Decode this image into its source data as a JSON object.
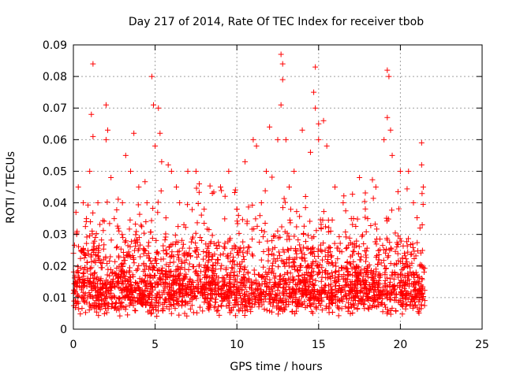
{
  "chart_data": {
    "type": "scatter",
    "title": "Day 217 of 2014, Rate Of TEC Index for receiver tbob",
    "xlabel": "GPS time / hours",
    "ylabel": "ROTI / TECUs",
    "xlim": [
      0,
      25
    ],
    "ylim": [
      0,
      0.09
    ],
    "x_ticks": [
      "0",
      "5",
      "10",
      "15",
      "20",
      "25"
    ],
    "y_ticks": [
      "0",
      "0.01",
      "0.02",
      "0.03",
      "0.04",
      "0.05",
      "0.06",
      "0.07",
      "0.08",
      "0.09"
    ],
    "x_tick_values": [
      0,
      5,
      10,
      15,
      20,
      25
    ],
    "y_tick_values": [
      0,
      0.01,
      0.02,
      0.03,
      0.04,
      0.05,
      0.06,
      0.07,
      0.08,
      0.09
    ],
    "grid": true,
    "marker": "+",
    "color": "#ff0000",
    "x_data_range": [
      0,
      21.5
    ],
    "series": [
      {
        "name": "",
        "points": [
          [
            1.2,
            0.084
          ],
          [
            1.1,
            0.068
          ],
          [
            1.2,
            0.061
          ],
          [
            1.0,
            0.05
          ],
          [
            2.0,
            0.071
          ],
          [
            2.1,
            0.063
          ],
          [
            2.0,
            0.06
          ],
          [
            2.3,
            0.048
          ],
          [
            3.2,
            0.055
          ],
          [
            3.7,
            0.062
          ],
          [
            3.5,
            0.05
          ],
          [
            4.8,
            0.08
          ],
          [
            4.9,
            0.071
          ],
          [
            5.2,
            0.07
          ],
          [
            5.3,
            0.062
          ],
          [
            5.4,
            0.053
          ],
          [
            5.0,
            0.058
          ],
          [
            5.8,
            0.052
          ],
          [
            6.0,
            0.05
          ],
          [
            6.3,
            0.045
          ],
          [
            7.0,
            0.05
          ],
          [
            7.5,
            0.05
          ],
          [
            7.7,
            0.046
          ],
          [
            8.5,
            0.043
          ],
          [
            9.0,
            0.045
          ],
          [
            9.5,
            0.05
          ],
          [
            10.5,
            0.053
          ],
          [
            11.0,
            0.06
          ],
          [
            11.2,
            0.058
          ],
          [
            11.8,
            0.05
          ],
          [
            12.0,
            0.064
          ],
          [
            12.5,
            0.06
          ],
          [
            12.7,
            0.087
          ],
          [
            12.8,
            0.084
          ],
          [
            12.8,
            0.079
          ],
          [
            12.7,
            0.071
          ],
          [
            13.0,
            0.06
          ],
          [
            13.5,
            0.05
          ],
          [
            14.0,
            0.063
          ],
          [
            14.5,
            0.056
          ],
          [
            14.8,
            0.083
          ],
          [
            14.7,
            0.075
          ],
          [
            14.8,
            0.07
          ],
          [
            15.0,
            0.065
          ],
          [
            15.3,
            0.066
          ],
          [
            15.5,
            0.058
          ],
          [
            15.0,
            0.06
          ],
          [
            16.0,
            0.045
          ],
          [
            17.5,
            0.048
          ],
          [
            18.5,
            0.045
          ],
          [
            19.0,
            0.06
          ],
          [
            19.2,
            0.082
          ],
          [
            19.3,
            0.08
          ],
          [
            19.2,
            0.067
          ],
          [
            19.4,
            0.063
          ],
          [
            19.5,
            0.055
          ],
          [
            20.0,
            0.05
          ],
          [
            20.5,
            0.05
          ],
          [
            21.3,
            0.059
          ],
          [
            21.3,
            0.052
          ],
          [
            21.4,
            0.045
          ],
          [
            21.2,
            0.032
          ],
          [
            0.3,
            0.045
          ],
          [
            0.6,
            0.04
          ],
          [
            0.2,
            0.03
          ],
          [
            0.5,
            0.025
          ],
          [
            0.8,
            0.035
          ],
          [
            1.5,
            0.04
          ],
          [
            2.5,
            0.035
          ],
          [
            3.0,
            0.04
          ],
          [
            4.0,
            0.045
          ],
          [
            4.5,
            0.04
          ],
          [
            6.5,
            0.04
          ],
          [
            8.0,
            0.038
          ],
          [
            10.0,
            0.038
          ],
          [
            11.5,
            0.04
          ],
          [
            13.2,
            0.045
          ],
          [
            14.2,
            0.042
          ],
          [
            16.5,
            0.04
          ],
          [
            17.0,
            0.035
          ],
          [
            18.0,
            0.035
          ],
          [
            20.8,
            0.04
          ]
        ]
      }
    ]
  }
}
